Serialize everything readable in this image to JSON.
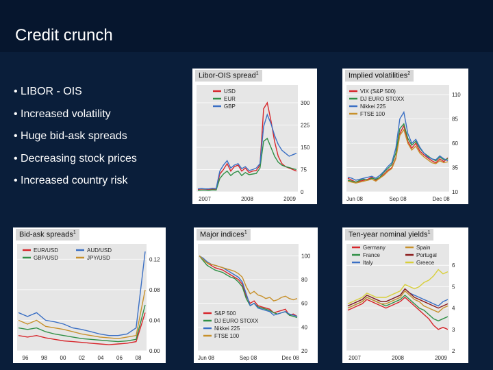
{
  "slide": {
    "title": "Credit crunch",
    "bullets": [
      "• LIBOR - OIS",
      "• Increased volatility",
      "• Huge bid-ask spreads",
      "• Decreasing stock prices",
      "• Increased country risk"
    ]
  },
  "colors": {
    "background": "#0a1e3a",
    "title_bar": "#06162e",
    "red": "#d7262b",
    "green": "#2f8f45",
    "blue": "#3a6fc4",
    "orange": "#c7902a",
    "yellow": "#d8cf3a",
    "panel_grey": "#e6e6e6"
  },
  "chart_data": [
    {
      "type": "line",
      "title": "Libor-OIS spread",
      "title_note": "1",
      "x_tick_labels": [
        "2007",
        "2008",
        "2009"
      ],
      "y_tick_labels": [
        "0",
        "75",
        "150",
        "225",
        "300"
      ],
      "ylim": [
        0,
        360
      ],
      "legend": [
        "USD",
        "EUR",
        "GBP"
      ],
      "series": [
        {
          "name": "USD",
          "color": "#d7262b",
          "values": [
            8,
            10,
            9,
            8,
            10,
            9,
            60,
            75,
            95,
            70,
            85,
            90,
            70,
            80,
            65,
            70,
            72,
            90,
            280,
            300,
            240,
            170,
            120,
            95,
            85,
            80,
            75,
            70
          ]
        },
        {
          "name": "EUR",
          "color": "#2f8f45",
          "values": [
            5,
            6,
            6,
            5,
            7,
            6,
            45,
            60,
            70,
            55,
            65,
            70,
            55,
            65,
            58,
            60,
            62,
            80,
            170,
            180,
            150,
            120,
            100,
            90,
            85,
            82,
            78,
            75
          ]
        },
        {
          "name": "GBP",
          "color": "#3a6fc4",
          "values": [
            10,
            11,
            10,
            10,
            12,
            11,
            70,
            90,
            105,
            80,
            90,
            95,
            78,
            85,
            72,
            75,
            80,
            95,
            220,
            260,
            230,
            190,
            160,
            140,
            130,
            120,
            125,
            130
          ]
        }
      ]
    },
    {
      "type": "line",
      "title": "Implied volatilities",
      "title_note": "2",
      "x_tick_labels": [
        "Jun 08",
        "Sep 08",
        "Dec 08"
      ],
      "y_tick_labels": [
        "10",
        "35",
        "60",
        "85",
        "110"
      ],
      "ylim": [
        10,
        120
      ],
      "legend": [
        "VIX (S&P 500)",
        "DJ EURO STOXX",
        "Nikkei 225",
        "FTSE 100"
      ],
      "series": [
        {
          "name": "VIX (S&P 500)",
          "color": "#d7262b",
          "values": [
            24,
            22,
            20,
            21,
            22,
            23,
            25,
            22,
            24,
            28,
            32,
            35,
            45,
            70,
            78,
            62,
            55,
            60,
            52,
            48,
            45,
            42,
            40,
            44,
            41,
            45
          ]
        },
        {
          "name": "DJ EURO STOXX",
          "color": "#2f8f45",
          "values": [
            22,
            21,
            20,
            22,
            23,
            22,
            24,
            23,
            25,
            30,
            34,
            38,
            50,
            75,
            80,
            65,
            58,
            62,
            55,
            50,
            47,
            44,
            42,
            46,
            43,
            44
          ]
        },
        {
          "name": "Nikkei 225",
          "color": "#3a6fc4",
          "values": [
            25,
            24,
            22,
            23,
            24,
            25,
            26,
            24,
            27,
            31,
            36,
            40,
            55,
            85,
            92,
            70,
            60,
            64,
            56,
            50,
            46,
            44,
            43,
            47,
            44,
            42
          ]
        },
        {
          "name": "FTSE 100",
          "color": "#c7902a",
          "values": [
            21,
            20,
            19,
            20,
            21,
            22,
            23,
            21,
            24,
            27,
            31,
            34,
            44,
            68,
            74,
            60,
            53,
            57,
            50,
            46,
            43,
            40,
            39,
            42,
            40,
            41
          ]
        }
      ]
    },
    {
      "type": "line",
      "title": "Bid-ask spreads",
      "title_note": "1",
      "x_tick_labels": [
        "96",
        "98",
        "00",
        "02",
        "04",
        "06",
        "08"
      ],
      "y_tick_labels": [
        "0.00",
        "0.04",
        "0.08",
        "0.12"
      ],
      "ylim": [
        0,
        0.14
      ],
      "legend": [
        "EUR/USD",
        "GBP/USD",
        "AUD/USD",
        "JPY/USD"
      ],
      "series": [
        {
          "name": "EUR/USD",
          "color": "#d7262b",
          "values": [
            0.02,
            0.018,
            0.02,
            0.017,
            0.015,
            0.013,
            0.012,
            0.011,
            0.01,
            0.009,
            0.008,
            0.009,
            0.01,
            0.012,
            0.05
          ]
        },
        {
          "name": "GBP/USD",
          "color": "#2f8f45",
          "values": [
            0.03,
            0.028,
            0.03,
            0.025,
            0.022,
            0.02,
            0.018,
            0.016,
            0.015,
            0.014,
            0.013,
            0.012,
            0.013,
            0.015,
            0.06
          ]
        },
        {
          "name": "AUD/USD",
          "color": "#3a6fc4",
          "values": [
            0.05,
            0.045,
            0.05,
            0.04,
            0.038,
            0.035,
            0.03,
            0.028,
            0.025,
            0.022,
            0.02,
            0.02,
            0.022,
            0.03,
            0.13
          ]
        },
        {
          "name": "JPY/USD",
          "color": "#c7902a",
          "values": [
            0.04,
            0.035,
            0.04,
            0.032,
            0.03,
            0.028,
            0.025,
            0.022,
            0.02,
            0.018,
            0.017,
            0.016,
            0.018,
            0.02,
            0.08
          ]
        }
      ]
    },
    {
      "type": "line",
      "title": "Major indices",
      "title_note": "1",
      "x_tick_labels": [
        "Jun 08",
        "Sep 08",
        "Dec 08"
      ],
      "y_tick_labels": [
        "20",
        "40",
        "60",
        "80",
        "100"
      ],
      "ylim": [
        20,
        110
      ],
      "legend": [
        "S&P 500",
        "DJ EURO STOXX",
        "Nikkei 225",
        "FTSE 100"
      ],
      "series": [
        {
          "name": "S&P 500",
          "color": "#d7262b",
          "values": [
            100,
            97,
            94,
            92,
            90,
            89,
            88,
            86,
            84,
            82,
            80,
            76,
            66,
            60,
            62,
            58,
            57,
            56,
            55,
            52,
            53,
            54,
            55,
            50,
            51,
            49
          ]
        },
        {
          "name": "DJ EURO STOXX",
          "color": "#2f8f45",
          "values": [
            100,
            96,
            92,
            90,
            88,
            87,
            86,
            84,
            82,
            81,
            78,
            74,
            64,
            58,
            60,
            57,
            56,
            55,
            54,
            52,
            51,
            52,
            53,
            50,
            49,
            48
          ]
        },
        {
          "name": "Nikkei 225",
          "color": "#3a6fc4",
          "values": [
            100,
            98,
            95,
            93,
            92,
            91,
            90,
            88,
            86,
            84,
            82,
            78,
            68,
            58,
            60,
            56,
            55,
            54,
            53,
            50,
            51,
            52,
            53,
            51,
            50,
            49
          ]
        },
        {
          "name": "FTSE 100",
          "color": "#c7902a",
          "values": [
            100,
            97,
            94,
            93,
            92,
            91,
            90,
            89,
            88,
            87,
            85,
            82,
            74,
            68,
            70,
            67,
            66,
            64,
            65,
            62,
            63,
            65,
            66,
            64,
            63,
            64
          ]
        }
      ]
    },
    {
      "type": "line",
      "title": "Ten-year nominal yields",
      "title_note": "1",
      "x_tick_labels": [
        "2007",
        "2008",
        "2009"
      ],
      "y_tick_labels": [
        "2",
        "3",
        "4",
        "5",
        "6"
      ],
      "ylim": [
        2,
        7
      ],
      "legend": [
        "Germany",
        "France",
        "Italy",
        "Spain",
        "Portugal",
        "Greece"
      ],
      "series": [
        {
          "name": "Germany",
          "color": "#d7262b",
          "values": [
            3.9,
            4.0,
            4.1,
            4.2,
            4.4,
            4.3,
            4.2,
            4.1,
            4.0,
            4.1,
            4.2,
            4.3,
            4.5,
            4.3,
            4.1,
            3.9,
            3.7,
            3.5,
            3.2,
            3.0,
            3.1,
            3.0
          ]
        },
        {
          "name": "France",
          "color": "#2f8f45",
          "values": [
            4.0,
            4.1,
            4.2,
            4.3,
            4.5,
            4.4,
            4.3,
            4.2,
            4.1,
            4.2,
            4.3,
            4.4,
            4.6,
            4.4,
            4.2,
            4.0,
            3.9,
            3.7,
            3.5,
            3.4,
            3.5,
            3.6
          ]
        },
        {
          "name": "Italy",
          "color": "#3a6fc4",
          "values": [
            4.1,
            4.2,
            4.3,
            4.4,
            4.6,
            4.5,
            4.4,
            4.3,
            4.3,
            4.4,
            4.5,
            4.6,
            4.9,
            4.7,
            4.6,
            4.5,
            4.4,
            4.3,
            4.2,
            4.1,
            4.3,
            4.4
          ]
        },
        {
          "name": "Spain",
          "color": "#c7902a",
          "values": [
            4.0,
            4.1,
            4.2,
            4.3,
            4.5,
            4.4,
            4.3,
            4.2,
            4.2,
            4.3,
            4.4,
            4.5,
            4.8,
            4.6,
            4.4,
            4.3,
            4.1,
            4.0,
            3.9,
            3.8,
            4.0,
            4.1
          ]
        },
        {
          "name": "Portugal",
          "color": "#8b1a1a",
          "values": [
            4.1,
            4.2,
            4.3,
            4.4,
            4.6,
            4.5,
            4.4,
            4.3,
            4.3,
            4.4,
            4.5,
            4.6,
            4.9,
            4.7,
            4.5,
            4.4,
            4.3,
            4.2,
            4.1,
            4.0,
            4.1,
            4.2
          ]
        },
        {
          "name": "Greece",
          "color": "#d8cf3a",
          "values": [
            4.2,
            4.3,
            4.4,
            4.5,
            4.7,
            4.6,
            4.5,
            4.5,
            4.5,
            4.6,
            4.7,
            4.8,
            5.1,
            5.0,
            4.9,
            5.0,
            5.2,
            5.3,
            5.5,
            5.8,
            5.6,
            5.7
          ]
        }
      ]
    }
  ]
}
